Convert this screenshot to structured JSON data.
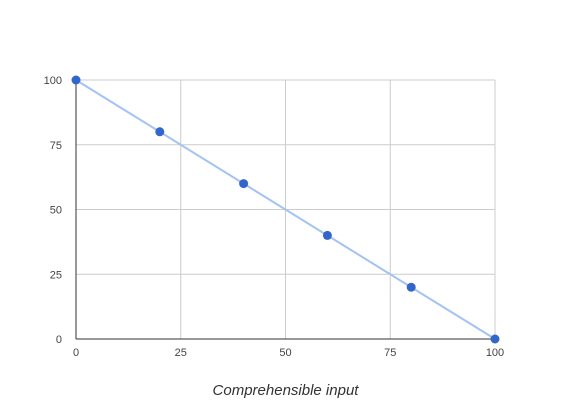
{
  "chart_data": {
    "type": "scatter",
    "title": "",
    "xlabel": "Comprehensible input",
    "ylabel": "",
    "xlim": [
      0,
      100
    ],
    "ylim": [
      0,
      100
    ],
    "grid": true,
    "x_ticks": [
      "0",
      "25",
      "50",
      "75",
      "100"
    ],
    "y_ticks": [
      "0",
      "25",
      "50",
      "75",
      "100"
    ],
    "series": [
      {
        "x": [
          0,
          20,
          40,
          60,
          80,
          100
        ],
        "y": [
          100,
          80,
          60,
          40,
          20,
          0
        ],
        "marker_color": "#3366cc"
      }
    ],
    "trendline": {
      "from": [
        0,
        100
      ],
      "to": [
        100,
        0
      ],
      "color": "#a4c2f4"
    },
    "colors": {
      "grid": "#cccccc",
      "axis": "#333333"
    }
  }
}
